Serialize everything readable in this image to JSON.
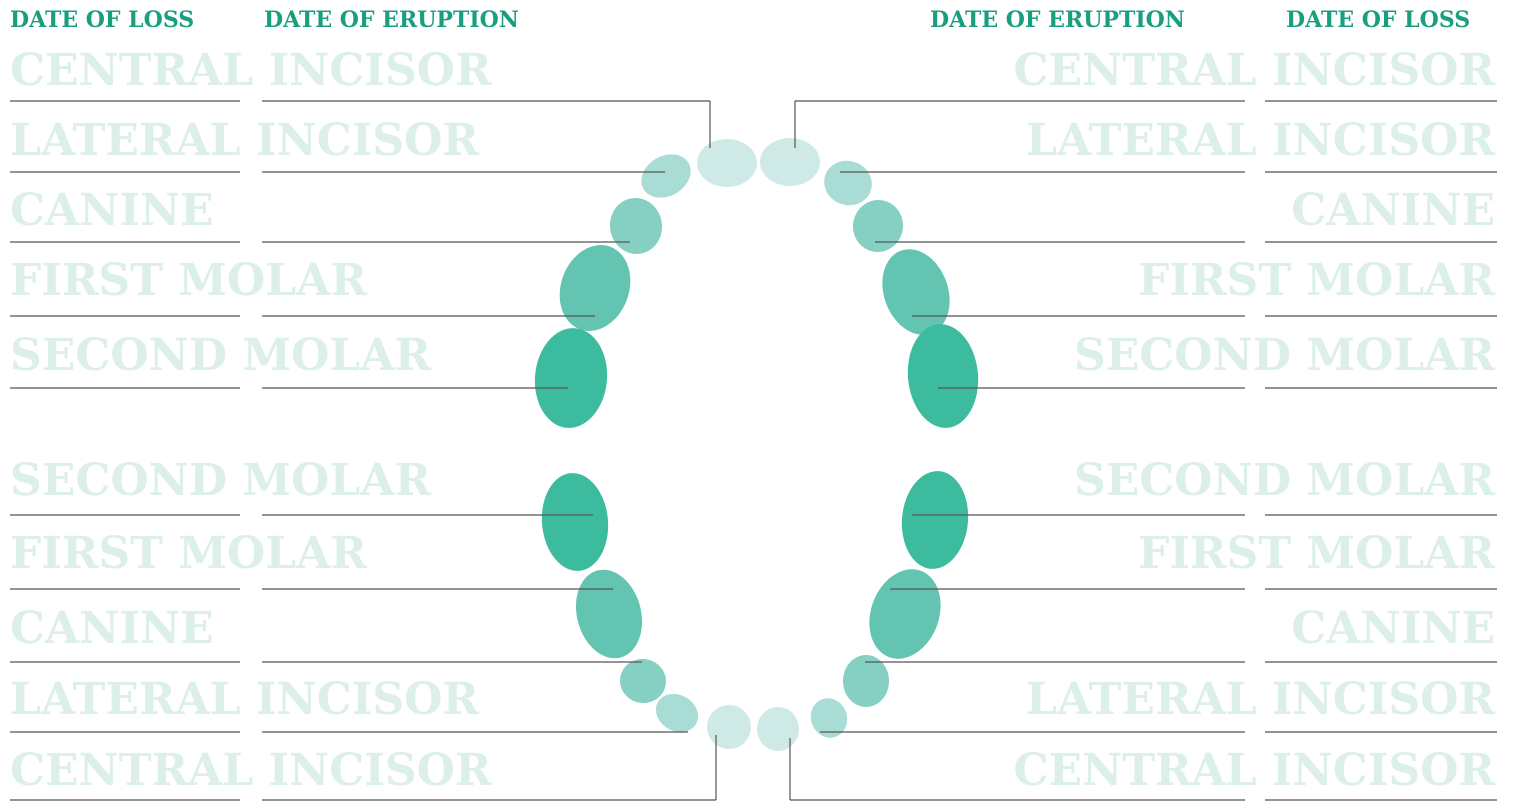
{
  "header": {
    "left": [
      "DATE OF LOSS",
      "DATE OF ERUPTION"
    ],
    "right": [
      "DATE OF ERUPTION",
      "DATE OF LOSS"
    ]
  },
  "upper_left": [
    "CENTRAL INCISOR",
    "LATERAL INCISOR",
    "CANINE",
    "FIRST MOLAR",
    "SECOND MOLAR"
  ],
  "upper_right": [
    "CENTRAL INCISOR",
    "LATERAL INCISOR",
    "CANINE",
    "FIRST MOLAR",
    "SECOND MOLAR"
  ],
  "lower_left": [
    "SECOND MOLAR",
    "FIRST MOLAR",
    "CANINE",
    "LATERAL INCISOR",
    "CENTRAL INCISOR"
  ],
  "lower_right": [
    "SECOND MOLAR",
    "FIRST MOLAR",
    "CANINE",
    "LATERAL INCISOR",
    "CENTRAL INCISOR"
  ]
}
